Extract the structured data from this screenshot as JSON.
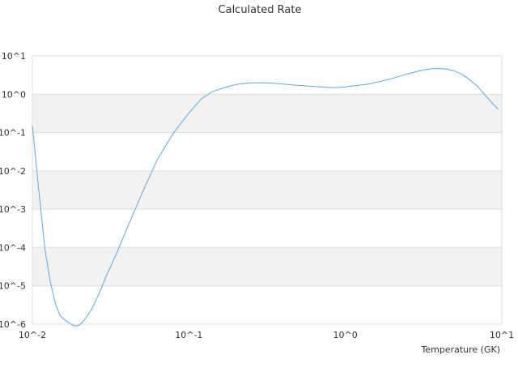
{
  "chart_data": {
    "type": "line",
    "title": "Calculated Rate",
    "xlabel": "Temperature (GK)",
    "ylabel": "",
    "x_scale": "log",
    "y_scale": "log",
    "xlim": [
      0.01,
      10
    ],
    "ylim": [
      1e-06,
      10
    ],
    "x_ticks": [
      {
        "value": 0.01,
        "label": "10^-2"
      },
      {
        "value": 0.1,
        "label": "10^-1"
      },
      {
        "value": 1,
        "label": "10^0"
      },
      {
        "value": 10,
        "label": "10^1"
      }
    ],
    "y_ticks": [
      {
        "value": 10,
        "label": "10^1"
      },
      {
        "value": 1,
        "label": "10^0"
      },
      {
        "value": 0.1,
        "label": "10^-1"
      },
      {
        "value": 0.01,
        "label": "10^-2"
      },
      {
        "value": 0.001,
        "label": "10^-3"
      },
      {
        "value": 0.0001,
        "label": "10^-4"
      },
      {
        "value": 1e-05,
        "label": "10^-5"
      },
      {
        "value": 1e-06,
        "label": "10^-6"
      }
    ],
    "grid": true,
    "legend": "none",
    "colors": {
      "line": "#5aa9e6",
      "band": "#f2f2f2",
      "grid": "#dddddd",
      "text": "#333333"
    },
    "series": [
      {
        "x": [
          0.01,
          0.011,
          0.012,
          0.013,
          0.014,
          0.015,
          0.0165,
          0.0185,
          0.02,
          0.0215,
          0.024,
          0.027,
          0.03,
          0.035,
          0.04,
          0.05,
          0.063,
          0.08,
          0.1,
          0.12,
          0.14,
          0.17,
          0.2,
          0.25,
          0.3,
          0.35,
          0.4,
          0.5,
          0.6,
          0.7,
          0.8,
          0.9,
          1.0,
          1.2,
          1.4,
          1.7,
          2.0,
          2.5,
          3.0,
          3.5,
          4.0,
          4.5,
          5.0,
          5.5,
          6.0,
          7.0,
          8.0,
          9.0,
          9.5
        ],
        "y": [
          0.15,
          0.003,
          0.0001,
          1.3e-05,
          3.5e-06,
          1.7e-06,
          1.2e-06,
          9e-07,
          9.5e-07,
          1.3e-06,
          2.5e-06,
          7e-06,
          2e-05,
          8e-05,
          0.0003,
          0.0025,
          0.02,
          0.1,
          0.32,
          0.75,
          1.15,
          1.5,
          1.8,
          2.0,
          2.0,
          1.95,
          1.85,
          1.7,
          1.62,
          1.55,
          1.5,
          1.5,
          1.55,
          1.7,
          1.85,
          2.2,
          2.6,
          3.4,
          4.1,
          4.6,
          4.7,
          4.5,
          4.0,
          3.4,
          2.7,
          1.6,
          0.85,
          0.5,
          0.4
        ]
      }
    ]
  }
}
